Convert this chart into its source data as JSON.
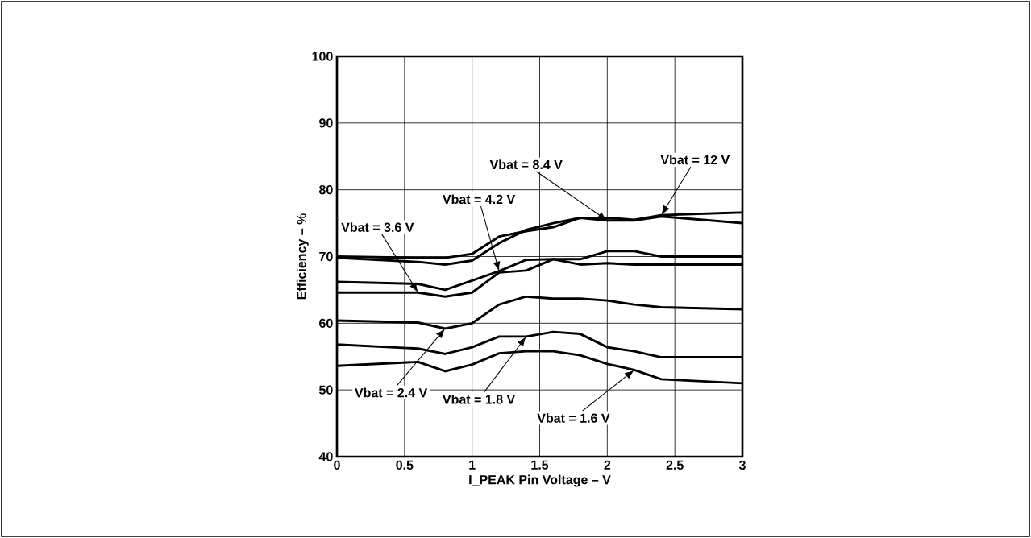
{
  "chart_data": {
    "type": "line",
    "xlabel": "I_PEAK Pin Voltage – V",
    "ylabel": "Efficiency – %",
    "xlim": [
      0,
      3
    ],
    "ylim": [
      40,
      100
    ],
    "xticks": [
      0,
      0.5,
      1,
      1.5,
      2,
      2.5,
      3
    ],
    "yticks": [
      40,
      50,
      60,
      70,
      80,
      90,
      100
    ],
    "grid": true,
    "marker": "none",
    "line_style": "solid",
    "x": [
      0,
      0.6,
      0.8,
      1.0,
      1.2,
      1.4,
      1.6,
      1.8,
      2.0,
      2.2,
      2.4,
      3.0
    ],
    "series": [
      {
        "name": "Vbat = 12 V",
        "color": "#000000",
        "values": [
          70,
          69.8,
          69.8,
          70.4,
          73,
          73.8,
          74.4,
          75.8,
          75.8,
          75.5,
          76.2,
          76.6
        ]
      },
      {
        "name": "Vbat = 8.4 V",
        "color": "#000000",
        "values": [
          69.8,
          69.2,
          68.8,
          69.4,
          72,
          74,
          75,
          75.8,
          75.4,
          75.4,
          76,
          75
        ]
      },
      {
        "name": "Vbat = 4.2 V",
        "color": "#000000",
        "values": [
          66.2,
          65.9,
          65,
          66.4,
          67.8,
          69.5,
          69.6,
          69.6,
          70.8,
          70.8,
          70,
          70
        ]
      },
      {
        "name": "Vbat = 3.6 V",
        "color": "#000000",
        "values": [
          64.6,
          64.6,
          64,
          64.6,
          67.6,
          67.9,
          69.6,
          68.8,
          69,
          68.8,
          68.8,
          68.8
        ]
      },
      {
        "name": "Vbat = 2.4 V",
        "color": "#000000",
        "values": [
          60.4,
          60.1,
          59.2,
          60,
          62.8,
          64,
          63.7,
          63.7,
          63.4,
          62.8,
          62.4,
          62.1
        ]
      },
      {
        "name": "Vbat = 1.8 V",
        "color": "#000000",
        "values": [
          56.8,
          56.2,
          55.4,
          56.4,
          58,
          58,
          58.7,
          58.4,
          56.4,
          55.8,
          54.9,
          54.9
        ]
      },
      {
        "name": "Vbat = 1.6 V",
        "color": "#000000",
        "values": [
          53.6,
          54.2,
          52.8,
          53.8,
          55.5,
          55.8,
          55.8,
          55.2,
          53.9,
          53,
          51.6,
          51
        ]
      }
    ]
  }
}
